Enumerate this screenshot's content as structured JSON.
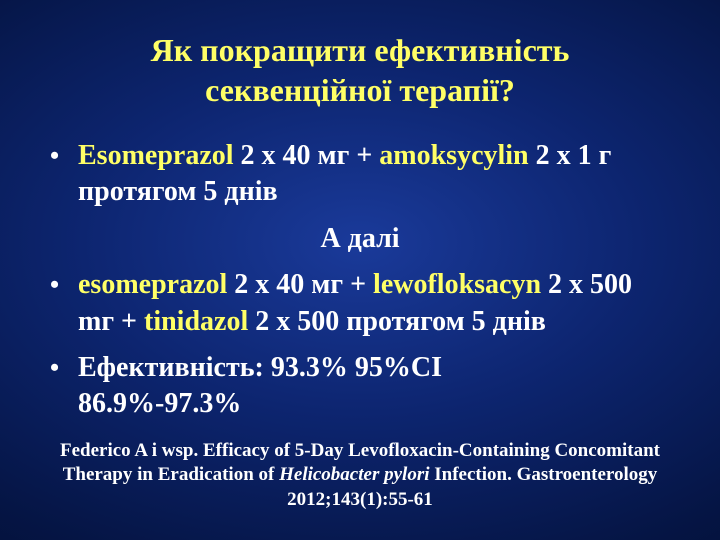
{
  "colors": {
    "background_center": "#1a3a9a",
    "background_edge": "#020a28",
    "title_color": "#ffff66",
    "text_color": "#ffffff",
    "emphasis_color": "#ffff66"
  },
  "typography": {
    "font_family": "Times New Roman",
    "title_fontsize_pt": 32,
    "body_fontsize_pt": 28,
    "citation_fontsize_pt": 19,
    "weight": "bold"
  },
  "title": {
    "line1": "Як покращити ефективність",
    "line2": "секвенційної терапії?"
  },
  "bullets": {
    "b1": {
      "drug1": "Esomeprazol",
      "seg1": " 2 x 40 мг + ",
      "drug2": "amoksycylin",
      "seg2": " 2 x 1 г протягом 5 днів"
    },
    "mid": "А далі",
    "b2": {
      "drug1": "esomeprazol",
      "seg1": "  2 x 40 мг + ",
      "drug2": "lewofloksacyn",
      "seg2": " 2 x 500 mг + ",
      "drug3": "tinidazol",
      "seg3": " 2 x 500 протягом 5 днів"
    },
    "b3": {
      "line1": "Ефективність: 93.3%   95%CI",
      "line2": "86.9%-97.3%"
    }
  },
  "citation": {
    "part1": "Federico A i wsp. Efficacy of 5-Day Levofloxacin-Containing Concomitant Therapy in Eradication of ",
    "italic": "Helicobacter pylori",
    "part2": " Infection. Gastroenterology 2012;143(1):55-61"
  },
  "bullet_char": "•"
}
